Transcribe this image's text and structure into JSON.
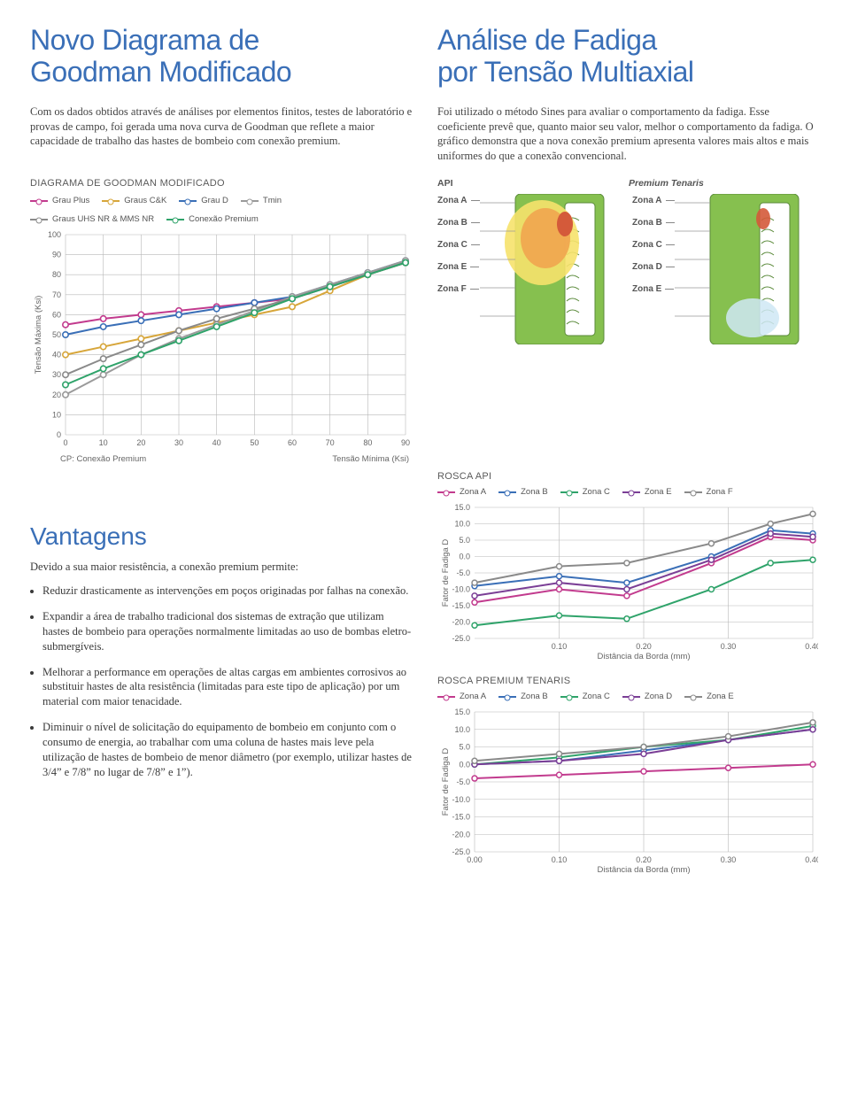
{
  "titles": {
    "left_l1": "Novo Diagrama de",
    "left_l2": "Goodman Modificado",
    "right_l1": "Análise de Fadiga",
    "right_l2": "por Tensão Multiaxial"
  },
  "paragraphs": {
    "left": "Com os dados obtidos através de análises por elementos finitos, testes de laboratório e provas de campo, foi gerada uma nova curva de Goodman que reflete a maior capacidade de trabalho das hastes de bombeio com conexão premium.",
    "right": "Foi utilizado o método Sines para avaliar o comportamento da fadiga. Esse coeficiente prevê que, quanto maior seu valor, melhor o comportamento da fadiga. O gráfico demonstra que a nova conexão premium apresenta valores mais altos e mais uniformes do que a conexão convencional."
  },
  "goodman": {
    "panel_title": "DIAGRAMA DE GOODMAN MODIFICADO",
    "legend": [
      {
        "label": "Grau Plus",
        "color": "#c23b8e"
      },
      {
        "label": "Graus C&K",
        "color": "#d7a63a"
      },
      {
        "label": "Grau D",
        "color": "#3a6fb7"
      },
      {
        "label": "Tmin",
        "color": "#9a9a9a"
      },
      {
        "label": "Graus UHS NR & MMS NR",
        "color": "#8a8a8a"
      },
      {
        "label": "Conexão Premium",
        "color": "#2fa36a"
      }
    ],
    "xlim": [
      0,
      90
    ],
    "ylim": [
      0,
      100
    ],
    "xticks": [
      0,
      10,
      20,
      30,
      40,
      50,
      60,
      70,
      80,
      90
    ],
    "yticks": [
      0,
      10,
      20,
      30,
      40,
      50,
      60,
      70,
      80,
      90,
      100
    ],
    "ylabel": "Tensão Máxima (Ksi)",
    "caption_left": "CP: Conexão Premium",
    "caption_right": "Tensão Mínima (Ksi)",
    "grid_color": "#b8b8b8",
    "bg": "#ffffff",
    "xstep_markers": 10,
    "series": [
      {
        "color": "#c23b8e",
        "ys": [
          55,
          58,
          60,
          62,
          64,
          66,
          68,
          74,
          80,
          86
        ]
      },
      {
        "color": "#d7a63a",
        "ys": [
          40,
          44,
          48,
          52,
          56,
          60,
          64,
          72,
          80,
          86
        ]
      },
      {
        "color": "#3a6fb7",
        "ys": [
          50,
          54,
          57,
          60,
          63,
          66,
          69,
          75,
          81,
          87
        ]
      },
      {
        "color": "#9a9a9a",
        "ys": [
          20,
          30,
          40,
          48,
          55,
          62,
          69,
          75,
          81,
          87
        ]
      },
      {
        "color": "#8a8a8a",
        "ys": [
          30,
          38,
          45,
          52,
          58,
          63,
          68,
          74,
          80,
          86
        ]
      },
      {
        "color": "#2fa36a",
        "ys": [
          25,
          33,
          40,
          47,
          54,
          61,
          68,
          74,
          80,
          86
        ]
      }
    ]
  },
  "zones": {
    "left_title": "API",
    "right_title": "Premium Tenaris",
    "left_labels": [
      "Zona A",
      "Zona B",
      "Zona C",
      "Zona E",
      "Zona F"
    ],
    "right_labels": [
      "Zona A",
      "Zona B",
      "Zona C",
      "Zona D",
      "Zona E"
    ],
    "shape_green": "#86c04f",
    "shape_orange": "#f0a850",
    "shape_yellow": "#f6e26b",
    "shape_red": "#d45a3a",
    "shape_blue": "#cfe8f5",
    "outline": "#5a8a3a"
  },
  "vantagens": {
    "heading": "Vantagens",
    "intro": "Devido a sua maior resistência, a conexão premium permite:",
    "items": [
      "Reduzir drasticamente as intervenções em poços originadas por falhas na conexão.",
      "Expandir a área de trabalho tradicional dos sistemas de extração que utilizam hastes de bombeio para operações normalmente limitadas ao uso de bombas eletro-submergíveis.",
      "Melhorar a performance em operações de altas cargas em ambientes corrosivos ao substituir hastes de alta resistência (limitadas para este tipo de aplicação) por um material com maior tenacidade.",
      "Diminuir o nível de solicitação do equipamento de bombeio em conjunto com o consumo de energia, ao trabalhar com uma coluna de hastes mais leve pela utilização de hastes de bombeio de menor diâmetro (por exemplo, utilizar hastes de 3/4” e 7/8” no lugar de 7/8” e 1”)."
    ]
  },
  "rosca_api": {
    "title": "ROSCA API",
    "legend": [
      {
        "label": "Zona A",
        "color": "#c23b8e"
      },
      {
        "label": "Zona B",
        "color": "#3a6fb7"
      },
      {
        "label": "Zona C",
        "color": "#2fa36a"
      },
      {
        "label": "Zona E",
        "color": "#7b3f96"
      },
      {
        "label": "Zona F",
        "color": "#8a8a8a"
      }
    ],
    "ylim": [
      -25,
      15
    ],
    "yticks": [
      -25,
      -20,
      -15,
      -10,
      -5,
      0,
      5,
      10,
      15
    ],
    "xlim": [
      0.0,
      0.4
    ],
    "xticks": [
      0.1,
      0.2,
      0.3,
      0.4
    ],
    "ylabel": "Fator de Fadiga D",
    "xlabel": "Distância da Borda (mm)",
    "series": [
      {
        "color": "#c23b8e",
        "xs": [
          0.0,
          0.1,
          0.18,
          0.28,
          0.35,
          0.4
        ],
        "ys": [
          -14,
          -10,
          -12,
          -2,
          6,
          5
        ]
      },
      {
        "color": "#3a6fb7",
        "xs": [
          0.0,
          0.1,
          0.18,
          0.28,
          0.35,
          0.4
        ],
        "ys": [
          -9,
          -6,
          -8,
          0,
          8,
          7
        ]
      },
      {
        "color": "#2fa36a",
        "xs": [
          0.0,
          0.1,
          0.18,
          0.28,
          0.35,
          0.4
        ],
        "ys": [
          -21,
          -18,
          -19,
          -10,
          -2,
          -1
        ]
      },
      {
        "color": "#7b3f96",
        "xs": [
          0.0,
          0.1,
          0.18,
          0.28,
          0.35,
          0.4
        ],
        "ys": [
          -12,
          -8,
          -10,
          -1,
          7,
          6
        ]
      },
      {
        "color": "#8a8a8a",
        "xs": [
          0.0,
          0.1,
          0.18,
          0.28,
          0.35,
          0.4
        ],
        "ys": [
          -8,
          -3,
          -2,
          4,
          10,
          13
        ]
      }
    ]
  },
  "rosca_premium": {
    "title": "ROSCA PREMIUM TENARIS",
    "legend": [
      {
        "label": "Zona A",
        "color": "#c23b8e"
      },
      {
        "label": "Zona B",
        "color": "#3a6fb7"
      },
      {
        "label": "Zona C",
        "color": "#2fa36a"
      },
      {
        "label": "Zona D",
        "color": "#7b3f96"
      },
      {
        "label": "Zona E",
        "color": "#8a8a8a"
      }
    ],
    "ylim": [
      -25,
      15
    ],
    "yticks": [
      -25,
      -20,
      -15,
      -10,
      -5,
      0,
      5,
      10,
      15
    ],
    "xlim": [
      0.0,
      0.4
    ],
    "xticks": [
      0.0,
      0.1,
      0.2,
      0.3,
      0.4
    ],
    "ylabel": "Fator de Fadiga D",
    "xlabel": "Distância da Borda (mm)",
    "series": [
      {
        "color": "#c23b8e",
        "xs": [
          0.0,
          0.1,
          0.2,
          0.3,
          0.4
        ],
        "ys": [
          -4,
          -3,
          -2,
          -1,
          0
        ]
      },
      {
        "color": "#3a6fb7",
        "xs": [
          0.0,
          0.1,
          0.2,
          0.3,
          0.4
        ],
        "ys": [
          0,
          1,
          4,
          7,
          10
        ]
      },
      {
        "color": "#2fa36a",
        "xs": [
          0.0,
          0.1,
          0.2,
          0.3,
          0.4
        ],
        "ys": [
          0,
          2,
          5,
          7,
          11
        ]
      },
      {
        "color": "#7b3f96",
        "xs": [
          0.0,
          0.1,
          0.2,
          0.3,
          0.4
        ],
        "ys": [
          0,
          1,
          3,
          7,
          10
        ]
      },
      {
        "color": "#8a8a8a",
        "xs": [
          0.0,
          0.1,
          0.2,
          0.3,
          0.4
        ],
        "ys": [
          1,
          3,
          5,
          8,
          12
        ]
      }
    ]
  },
  "colors": {
    "grid": "#b8b8b8"
  }
}
